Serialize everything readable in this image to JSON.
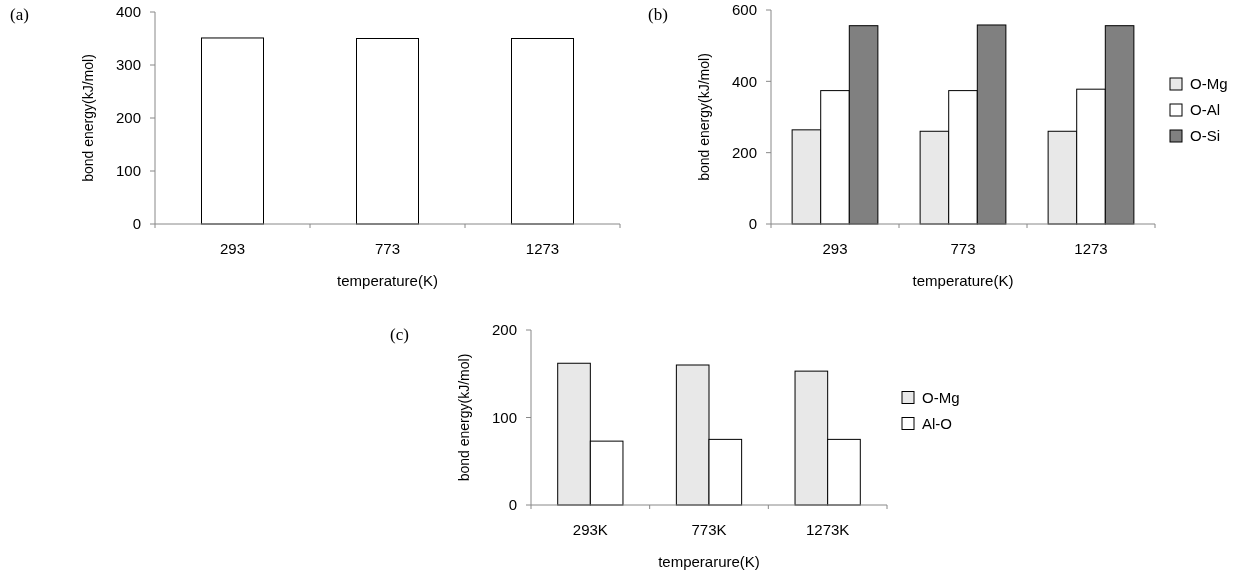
{
  "chart_data": [
    {
      "type": "bar",
      "title": "(a)",
      "xlabel": "temperature(K)",
      "ylabel": "bond energy(kJ/mol)",
      "categories": [
        "293",
        "773",
        "1273"
      ],
      "values": [
        351,
        350,
        350
      ],
      "color": "#ffffff",
      "ylim": [
        0,
        400
      ],
      "yticks": [
        0,
        100,
        200,
        300,
        400
      ],
      "grid": false,
      "legend": false
    },
    {
      "type": "bar",
      "title": "(b)",
      "xlabel": "temperature(K)",
      "ylabel": "bond energy(kJ/mol)",
      "categories": [
        "293",
        "773",
        "1273"
      ],
      "series": [
        {
          "name": "O-Mg",
          "color": "#e8e8e8",
          "values": [
            264,
            260,
            260
          ]
        },
        {
          "name": "O-Al",
          "color": "#ffffff",
          "values": [
            374,
            374,
            378
          ]
        },
        {
          "name": "O-Si",
          "color": "#808080",
          "values": [
            556,
            558,
            556
          ]
        }
      ],
      "ylim": [
        0,
        600
      ],
      "yticks": [
        0,
        200,
        400,
        600
      ],
      "grid": false,
      "legend": "right"
    },
    {
      "type": "bar",
      "title": "(c)",
      "xlabel": "temperarure(K)",
      "ylabel": "bond energy(kJ/mol)",
      "categories": [
        "293K",
        "773K",
        "1273K"
      ],
      "series": [
        {
          "name": "O-Mg",
          "color": "#e8e8e8",
          "values": [
            162,
            160,
            153
          ]
        },
        {
          "name": "Al-O",
          "color": "#ffffff",
          "values": [
            73,
            75,
            75
          ]
        }
      ],
      "ylim": [
        0,
        200
      ],
      "yticks": [
        0,
        100,
        200
      ],
      "grid": false,
      "legend": "right"
    }
  ]
}
